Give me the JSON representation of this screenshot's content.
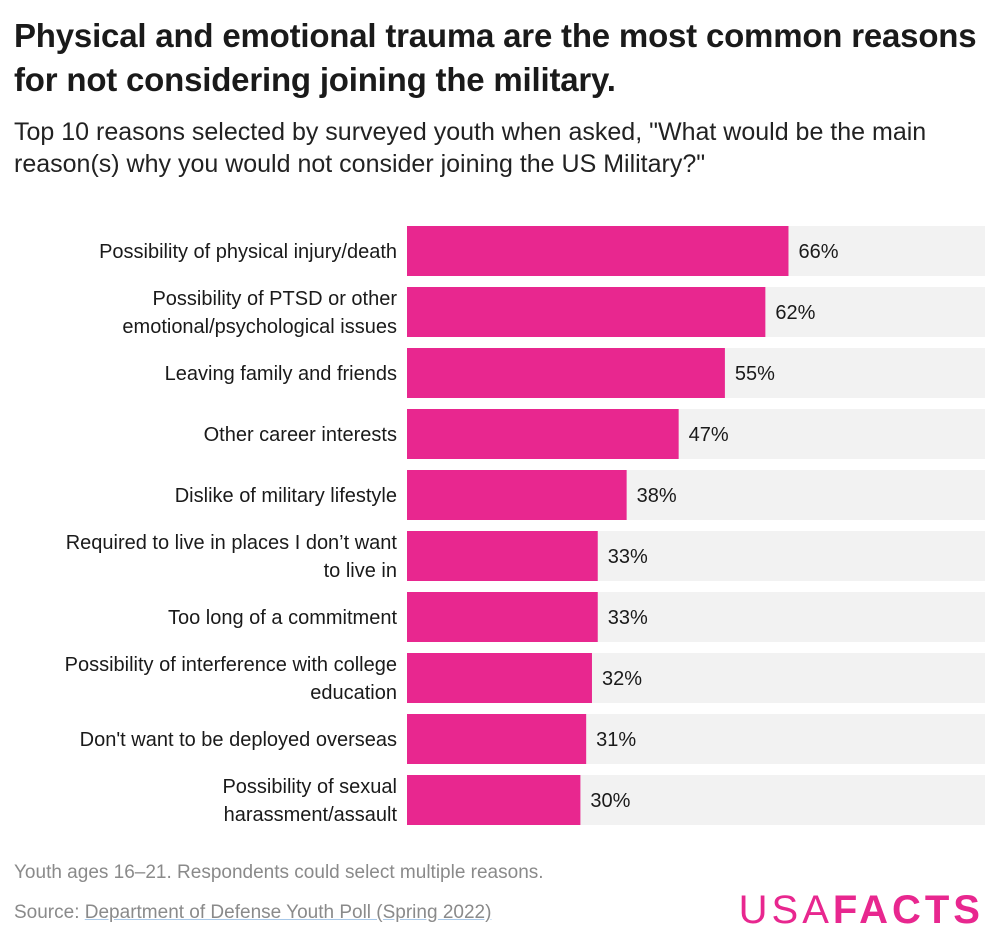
{
  "header": {
    "title": "Physical and emotional trauma are the most common reasons for not considering joining the military.",
    "subtitle": "Top 10 reasons selected by surveyed youth when asked, \"What would be the main reason(s) why you would not consider joining the US Military?\""
  },
  "chart_data": {
    "type": "bar",
    "orientation": "horizontal",
    "categories": [
      [
        "Possibility of physical injury/death"
      ],
      [
        "Possibility of PTSD or other",
        "emotional/psychological issues"
      ],
      [
        "Leaving family and friends"
      ],
      [
        "Other career interests"
      ],
      [
        "Dislike of military lifestyle"
      ],
      [
        "Required to live in places I don’t want",
        "to live in"
      ],
      [
        "Too long of a commitment"
      ],
      [
        "Possibility of interference with college",
        "education"
      ],
      [
        "Don't want to be deployed overseas"
      ],
      [
        "Possibility of sexual",
        "harassment/assault"
      ]
    ],
    "values": [
      66,
      62,
      55,
      47,
      38,
      33,
      33,
      32,
      31,
      30
    ],
    "value_labels": [
      "66%",
      "62%",
      "55%",
      "47%",
      "38%",
      "33%",
      "33%",
      "32%",
      "31%",
      "30%"
    ],
    "xlim": [
      0,
      100
    ],
    "bar_color": "#e8278f",
    "track_color": "#f2f2f2",
    "grid": false,
    "legend": "none"
  },
  "footer": {
    "note": "Youth ages 16–21. Respondents could select multiple reasons.",
    "source_prefix": "Source: ",
    "source_link": "Department of Defense Youth Poll (Spring 2022)",
    "logo_part1": "USA",
    "logo_part2": "FACTS"
  }
}
